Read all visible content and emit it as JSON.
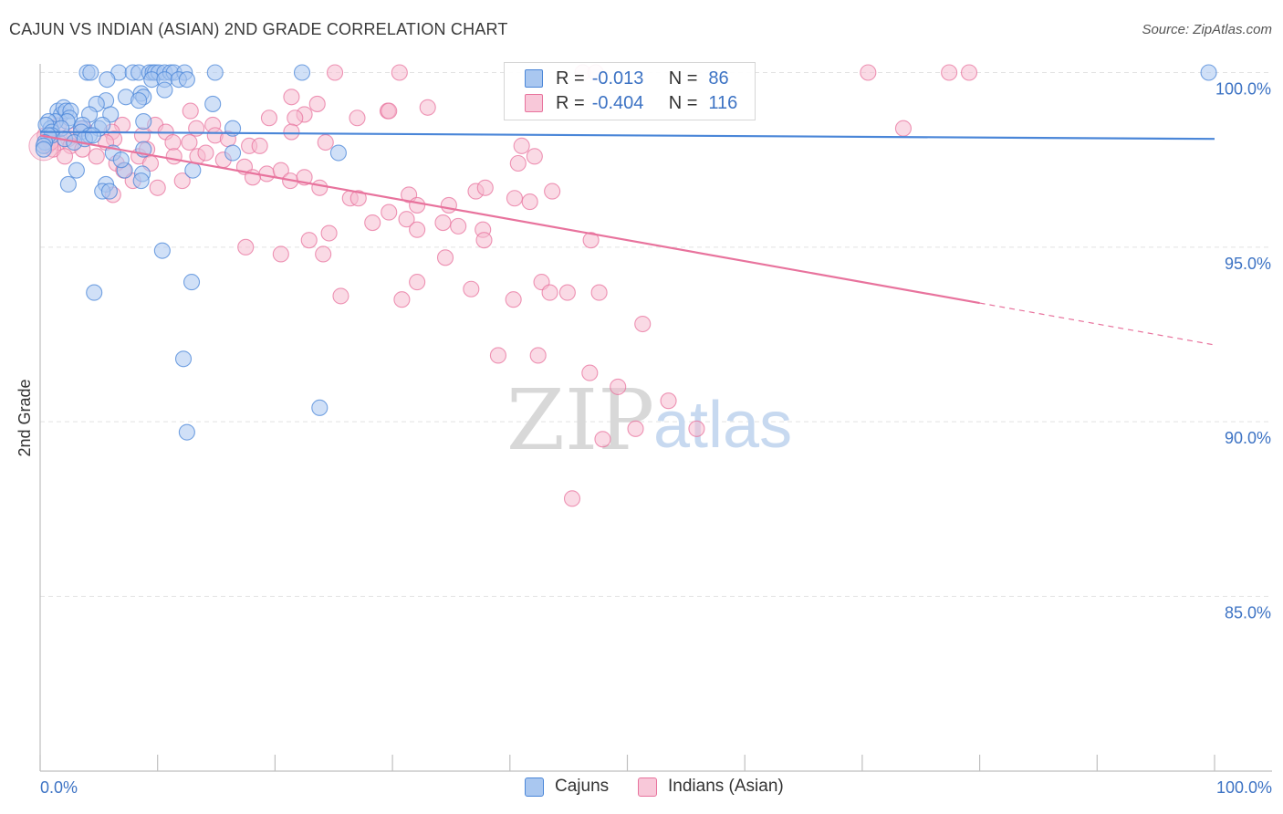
{
  "title": "CAJUN VS INDIAN (ASIAN) 2ND GRADE CORRELATION CHART",
  "source": "Source: ZipAtlas.com",
  "watermark": {
    "zip": "ZIP",
    "atlas": "atlas"
  },
  "colors": {
    "blue": "#4a86d8",
    "blue_fill": "#a9c7f0",
    "pink": "#e8739d",
    "pink_fill": "#f5bcd0",
    "axis_text": "#3d73c4"
  },
  "stats_legend": [
    {
      "r_label": "R =",
      "r_value": "-0.013",
      "n_label": "N =",
      "n_value": "86"
    },
    {
      "r_label": "R =",
      "r_value": "-0.404",
      "n_label": "N =",
      "n_value": "116"
    }
  ],
  "chart_data": {
    "type": "scatter",
    "title": "CAJUN VS INDIAN (ASIAN) 2ND GRADE CORRELATION CHART",
    "xlabel": "",
    "ylabel": "2nd Grade",
    "xlim": [
      0,
      100
    ],
    "ylim": [
      80.5,
      100.6
    ],
    "x_tick_labels": [
      "0.0%",
      "100.0%"
    ],
    "y_ticks": [
      85,
      90,
      95,
      100
    ],
    "y_tick_labels": [
      "85.0%",
      "90.0%",
      "95.0%",
      "100.0%"
    ],
    "grid": true,
    "legend": "bottom-center",
    "series": [
      {
        "name": "Cajuns",
        "color": "#4a86d8",
        "r": -0.013,
        "n": 86,
        "trend": {
          "x0": 0,
          "y0": 98.3,
          "x1": 100,
          "y1": 98.1,
          "dashed_from": null
        },
        "points": [
          [
            4.0,
            100
          ],
          [
            4.3,
            100
          ],
          [
            6.7,
            100
          ],
          [
            7.9,
            100
          ],
          [
            8.4,
            100
          ],
          [
            9.3,
            100
          ],
          [
            9.6,
            100
          ],
          [
            9.8,
            100
          ],
          [
            10.1,
            100
          ],
          [
            10.6,
            100
          ],
          [
            11.1,
            100
          ],
          [
            11.4,
            100
          ],
          [
            12.3,
            100
          ],
          [
            14.9,
            100
          ],
          [
            22.3,
            100
          ],
          [
            99.5,
            100
          ],
          [
            5.7,
            99.8
          ],
          [
            9.5,
            99.8
          ],
          [
            10.6,
            99.8
          ],
          [
            11.8,
            99.8
          ],
          [
            12.5,
            99.8
          ],
          [
            8.6,
            99.4
          ],
          [
            7.3,
            99.3
          ],
          [
            8.8,
            99.3
          ],
          [
            8.4,
            99.2
          ],
          [
            5.6,
            99.2
          ],
          [
            4.8,
            99.1
          ],
          [
            14.7,
            99.1
          ],
          [
            10.6,
            99.5
          ],
          [
            1.5,
            98.9
          ],
          [
            1.8,
            98.8
          ],
          [
            2.0,
            99.0
          ],
          [
            2.2,
            98.9
          ],
          [
            4.2,
            98.8
          ],
          [
            2.6,
            98.9
          ],
          [
            6.0,
            98.8
          ],
          [
            2.5,
            98.7
          ],
          [
            2.3,
            98.6
          ],
          [
            1.3,
            98.6
          ],
          [
            0.7,
            98.6
          ],
          [
            0.9,
            98.4
          ],
          [
            0.5,
            98.5
          ],
          [
            3.5,
            98.4
          ],
          [
            3.6,
            98.5
          ],
          [
            1.0,
            98.3
          ],
          [
            1.8,
            98.4
          ],
          [
            5.0,
            98.4
          ],
          [
            5.3,
            98.5
          ],
          [
            8.8,
            98.6
          ],
          [
            3.5,
            98.3
          ],
          [
            1.0,
            98.2
          ],
          [
            2.1,
            98.1
          ],
          [
            4.2,
            98.2
          ],
          [
            2.9,
            98.0
          ],
          [
            3.8,
            98.1
          ],
          [
            4.5,
            98.2
          ],
          [
            0.7,
            98.2
          ],
          [
            16.4,
            98.4
          ],
          [
            0.4,
            98.0
          ],
          [
            0.3,
            97.9
          ],
          [
            0.3,
            97.8
          ],
          [
            6.2,
            97.7
          ],
          [
            8.8,
            97.8
          ],
          [
            16.4,
            97.7
          ],
          [
            25.4,
            97.7
          ],
          [
            3.1,
            97.2
          ],
          [
            7.2,
            97.2
          ],
          [
            13.0,
            97.2
          ],
          [
            6.9,
            97.5
          ],
          [
            8.7,
            97.1
          ],
          [
            2.4,
            96.8
          ],
          [
            5.6,
            96.8
          ],
          [
            5.3,
            96.6
          ],
          [
            5.9,
            96.6
          ],
          [
            8.6,
            96.9
          ],
          [
            10.4,
            94.9
          ],
          [
            12.9,
            94.0
          ],
          [
            4.6,
            93.7
          ],
          [
            12.2,
            91.8
          ],
          [
            23.8,
            90.4
          ],
          [
            12.5,
            89.7
          ]
        ]
      },
      {
        "name": "Indians (Asian)",
        "color": "#e8739d",
        "r": -0.404,
        "n": 116,
        "trend": {
          "x0": 0,
          "y0": 98.2,
          "x1": 100,
          "y1": 92.2,
          "dashed_from": 80
        },
        "points": [
          [
            25.1,
            100
          ],
          [
            30.6,
            100
          ],
          [
            46.2,
            100
          ],
          [
            47.3,
            100
          ],
          [
            70.5,
            100
          ],
          [
            77.4,
            100
          ],
          [
            79.1,
            100
          ],
          [
            21.4,
            99.3
          ],
          [
            23.6,
            99.1
          ],
          [
            27.0,
            98.7
          ],
          [
            22.5,
            98.8
          ],
          [
            29.6,
            98.9
          ],
          [
            29.7,
            98.9
          ],
          [
            19.5,
            98.7
          ],
          [
            21.7,
            98.7
          ],
          [
            33.0,
            99.0
          ],
          [
            12.8,
            98.9
          ],
          [
            9.8,
            98.5
          ],
          [
            7.0,
            98.5
          ],
          [
            10.7,
            98.3
          ],
          [
            13.3,
            98.4
          ],
          [
            14.7,
            98.5
          ],
          [
            21.4,
            98.3
          ],
          [
            14.9,
            98.2
          ],
          [
            16.0,
            98.1
          ],
          [
            12.7,
            98.0
          ],
          [
            8.7,
            98.2
          ],
          [
            11.3,
            98.0
          ],
          [
            1.6,
            98.5
          ],
          [
            3.7,
            98.4
          ],
          [
            6.1,
            98.3
          ],
          [
            6.3,
            98.1
          ],
          [
            5.6,
            98.0
          ],
          [
            2.9,
            98.2
          ],
          [
            2.4,
            98.1
          ],
          [
            1.6,
            98.0
          ],
          [
            2.6,
            97.9
          ],
          [
            3.6,
            97.8
          ],
          [
            0.6,
            97.9
          ],
          [
            1.1,
            97.8
          ],
          [
            0.9,
            98.0
          ],
          [
            0.4,
            98.2
          ],
          [
            73.5,
            98.4
          ],
          [
            24.3,
            98.0
          ],
          [
            4.8,
            97.6
          ],
          [
            6.5,
            97.4
          ],
          [
            7.1,
            97.2
          ],
          [
            8.4,
            97.6
          ],
          [
            9.1,
            97.8
          ],
          [
            11.4,
            97.6
          ],
          [
            13.4,
            97.6
          ],
          [
            14.1,
            97.7
          ],
          [
            15.6,
            97.5
          ],
          [
            17.8,
            97.9
          ],
          [
            18.7,
            97.9
          ],
          [
            17.4,
            97.3
          ],
          [
            19.3,
            97.1
          ],
          [
            20.5,
            97.2
          ],
          [
            18.1,
            97.0
          ],
          [
            21.3,
            96.9
          ],
          [
            22.5,
            97.0
          ],
          [
            23.8,
            96.7
          ],
          [
            31.4,
            96.5
          ],
          [
            32.1,
            96.2
          ],
          [
            34.8,
            96.2
          ],
          [
            37.1,
            96.6
          ],
          [
            37.9,
            96.7
          ],
          [
            40.4,
            96.4
          ],
          [
            41.7,
            96.3
          ],
          [
            43.6,
            96.6
          ],
          [
            42.1,
            97.6
          ],
          [
            40.7,
            97.4
          ],
          [
            41.0,
            97.9
          ],
          [
            2.1,
            97.6
          ],
          [
            12.1,
            96.9
          ],
          [
            9.4,
            97.4
          ],
          [
            7.9,
            96.9
          ],
          [
            6.2,
            96.5
          ],
          [
            10.0,
            96.7
          ],
          [
            26.4,
            96.4
          ],
          [
            27.1,
            96.4
          ],
          [
            29.7,
            96.0
          ],
          [
            28.3,
            95.7
          ],
          [
            34.3,
            95.7
          ],
          [
            35.6,
            95.6
          ],
          [
            37.7,
            95.5
          ],
          [
            31.2,
            95.8
          ],
          [
            32.1,
            95.5
          ],
          [
            24.6,
            95.4
          ],
          [
            22.9,
            95.2
          ],
          [
            37.8,
            95.2
          ],
          [
            46.9,
            95.2
          ],
          [
            17.5,
            95.0
          ],
          [
            20.5,
            94.8
          ],
          [
            24.1,
            94.8
          ],
          [
            34.5,
            94.7
          ],
          [
            32.1,
            94.0
          ],
          [
            40.3,
            93.5
          ],
          [
            42.7,
            94.0
          ],
          [
            36.7,
            93.8
          ],
          [
            43.4,
            93.7
          ],
          [
            44.9,
            93.7
          ],
          [
            47.6,
            93.7
          ],
          [
            25.6,
            93.6
          ],
          [
            30.8,
            93.5
          ],
          [
            51.3,
            92.8
          ],
          [
            39.0,
            91.9
          ],
          [
            42.4,
            91.9
          ],
          [
            46.8,
            91.4
          ],
          [
            49.2,
            91.0
          ],
          [
            53.5,
            90.6
          ],
          [
            50.7,
            89.8
          ],
          [
            55.9,
            89.8
          ],
          [
            47.9,
            89.5
          ],
          [
            45.3,
            87.8
          ]
        ]
      }
    ]
  },
  "bottom_legend": [
    {
      "label": "Cajuns"
    },
    {
      "label": "Indians (Asian)"
    }
  ]
}
